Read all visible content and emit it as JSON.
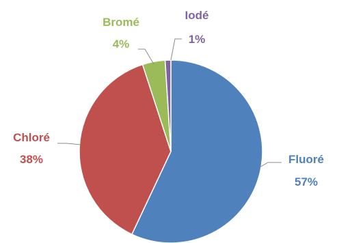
{
  "chart_data": {
    "type": "pie",
    "categories": [
      "Fluoré",
      "Chloré",
      "Bromé",
      "Iodé"
    ],
    "values": [
      57,
      38,
      4,
      1
    ],
    "percent_labels": [
      "57%",
      "38%",
      "4%",
      "1%"
    ],
    "colors": [
      "#4f81bd",
      "#c0504d",
      "#9bbb59",
      "#8064a2"
    ],
    "start_angle_deg": 0,
    "direction": "clockwise",
    "legend": "none"
  }
}
